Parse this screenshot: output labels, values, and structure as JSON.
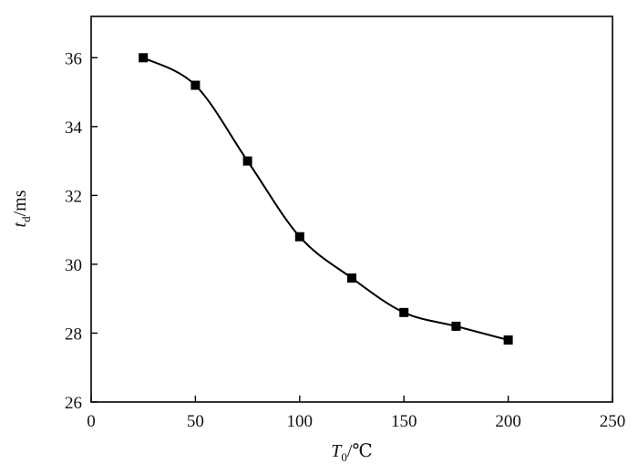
{
  "chart_data": {
    "type": "scatter",
    "title": "",
    "xlabel": {
      "main": "T",
      "sub": "0",
      "unit": "/℃"
    },
    "ylabel": {
      "main": "t",
      "sub": "d",
      "unit": "/ms"
    },
    "xlim": [
      0,
      250
    ],
    "ylim": [
      26,
      37.2
    ],
    "xticks": [
      0,
      50,
      100,
      150,
      200,
      250
    ],
    "yticks": [
      26,
      28,
      30,
      32,
      34,
      36
    ],
    "grid": false,
    "marker": "square",
    "fit_curve": true,
    "series": [
      {
        "x": [
          25,
          50,
          75,
          100,
          125,
          150,
          175,
          200
        ],
        "y": [
          36.0,
          35.2,
          33.0,
          30.8,
          29.6,
          28.6,
          28.2,
          27.8
        ]
      }
    ],
    "colors": {
      "marks": "#000000",
      "axis": "#000000"
    }
  }
}
